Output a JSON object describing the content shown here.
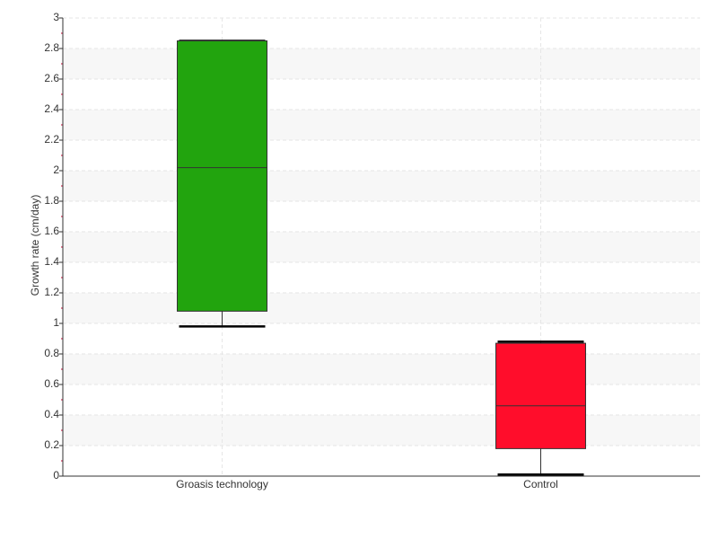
{
  "chart_data": {
    "type": "box",
    "y_label": "Growth rate (cm/day)",
    "categories": [
      "Groasis technology",
      "Control"
    ],
    "min": [
      0.98,
      0.01
    ],
    "q1": [
      1.08,
      0.18
    ],
    "median": [
      2.02,
      0.46
    ],
    "q3": [
      2.85,
      0.87
    ],
    "max": [
      2.85,
      0.88
    ],
    "colors": [
      "#22a40e",
      "#ff0d2b"
    ],
    "ylim": [
      0,
      3
    ],
    "yticks": [
      0,
      0.2,
      0.4,
      0.6,
      0.8,
      1,
      1.2,
      1.4,
      1.6,
      1.8,
      2,
      2.2,
      2.4,
      2.6,
      2.8,
      3
    ],
    "grid": true
  }
}
